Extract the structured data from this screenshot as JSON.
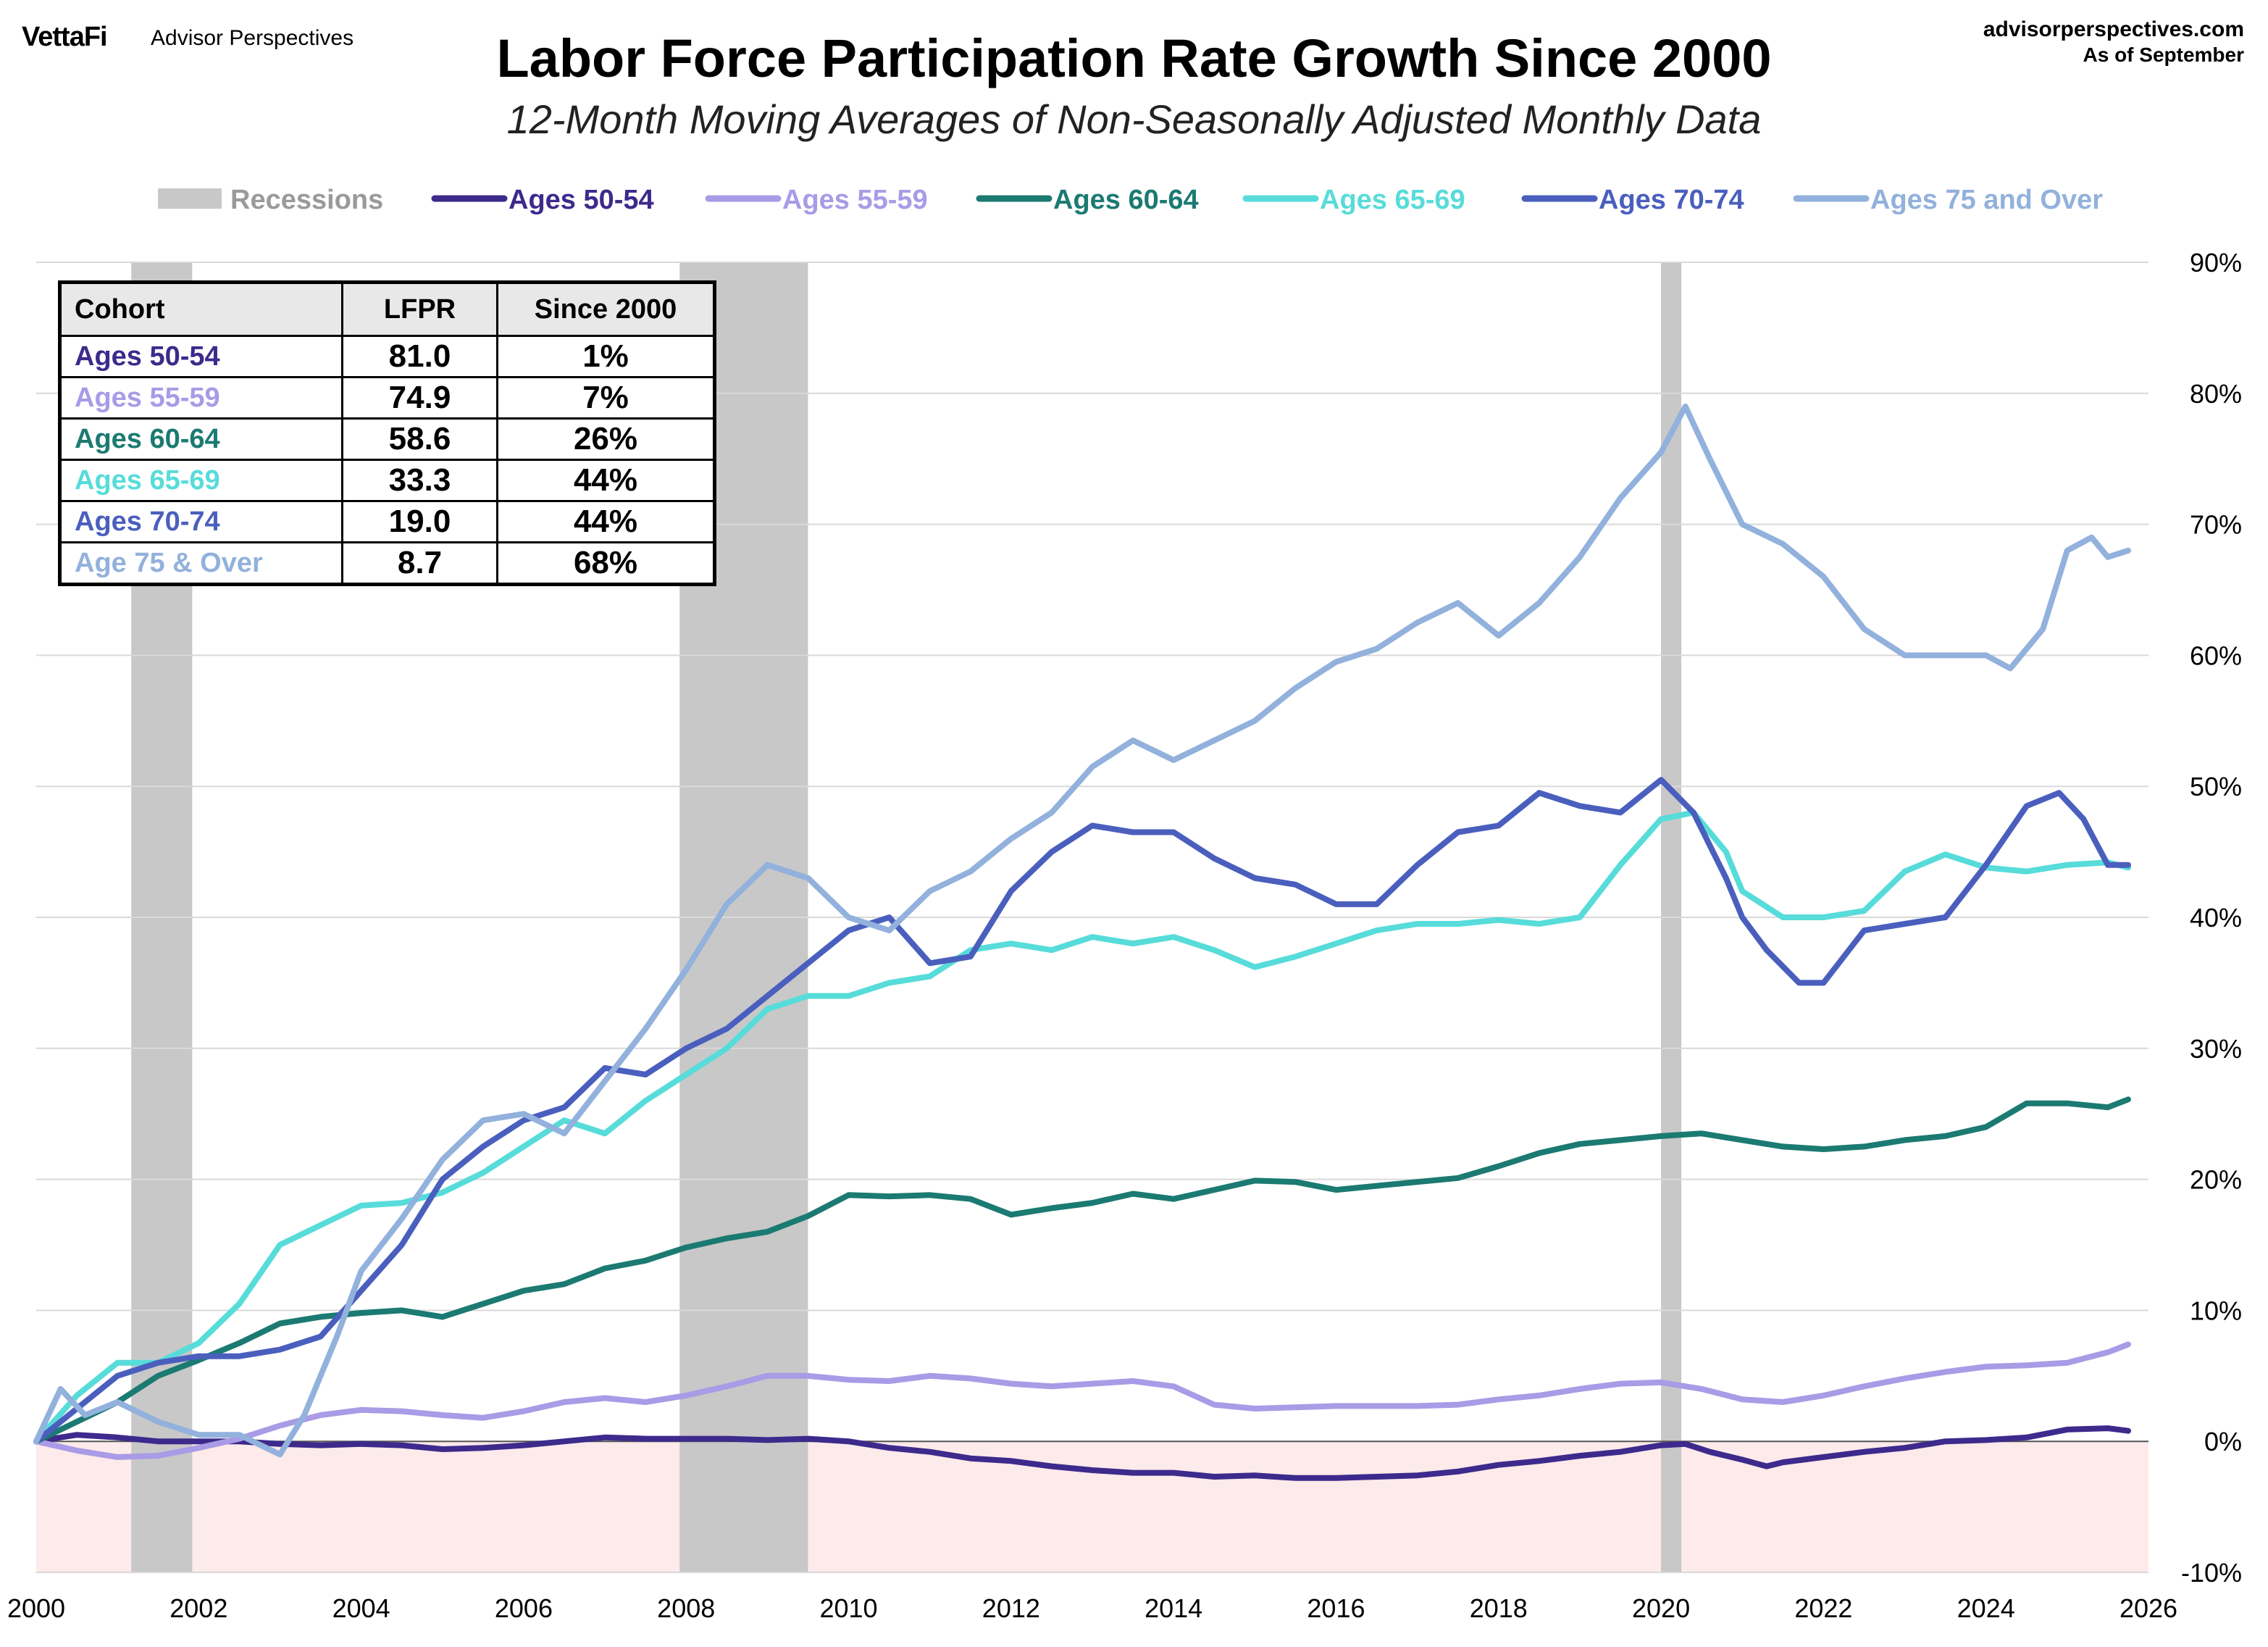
{
  "header": {
    "logo": "VettaFi",
    "brand": "Advisor Perspectives",
    "site": "advisorperspectives.com",
    "as_of": "As of September"
  },
  "chart_data": {
    "type": "line",
    "title": "Labor Force Participation Rate Growth Since 2000",
    "subtitle": "12-Month Moving Averages of Non-Seasonally Adjusted Monthly Data",
    "xlim": [
      2000,
      2026
    ],
    "ylim": [
      -10,
      90
    ],
    "x_ticks": [
      2000,
      2002,
      2004,
      2006,
      2008,
      2010,
      2012,
      2014,
      2016,
      2018,
      2020,
      2022,
      2024,
      2026
    ],
    "x_tick_labels": [
      "2000",
      "2002",
      "2004",
      "2006",
      "2008",
      "2010",
      "2012",
      "2014",
      "2016",
      "2018",
      "2020",
      "2022",
      "2024",
      "2026"
    ],
    "y_ticks": [
      -10,
      0,
      10,
      20,
      30,
      40,
      50,
      60,
      70,
      80,
      90
    ],
    "y_tick_labels": [
      "-10%",
      "0%",
      "10%",
      "20%",
      "30%",
      "40%",
      "50%",
      "60%",
      "70%",
      "80%",
      "90%"
    ],
    "grid": true,
    "legend": "top",
    "recessions": {
      "label": "Recessions",
      "color": "#c8c8c8",
      "periods": [
        [
          2001.17,
          2001.92
        ],
        [
          2007.92,
          2009.5
        ],
        [
          2020.0,
          2020.25
        ]
      ]
    },
    "negative_band_color": "#fdeaea",
    "series": [
      {
        "name": "Ages 50-54",
        "color": "#3d2a8c",
        "x": [
          2000,
          2000.5,
          2001,
          2001.5,
          2002,
          2002.5,
          2003,
          2003.5,
          2004,
          2004.5,
          2005,
          2005.5,
          2006,
          2006.5,
          2007,
          2007.5,
          2008,
          2008.5,
          2009,
          2009.5,
          2010,
          2010.5,
          2011,
          2011.5,
          2012,
          2012.5,
          2013,
          2013.5,
          2014,
          2014.5,
          2015,
          2015.5,
          2016,
          2016.5,
          2017,
          2017.5,
          2018,
          2018.5,
          2019,
          2019.5,
          2020,
          2020.3,
          2020.6,
          2021,
          2021.3,
          2021.5,
          2022,
          2022.5,
          2023,
          2023.5,
          2024,
          2024.5,
          2025,
          2025.5,
          2025.75
        ],
        "values": [
          0,
          0.5,
          0.3,
          0,
          0,
          0,
          -0.2,
          -0.3,
          -0.2,
          -0.3,
          -0.6,
          -0.5,
          -0.3,
          0,
          0.3,
          0.2,
          0.2,
          0.2,
          0.1,
          0.2,
          0,
          -0.5,
          -0.8,
          -1.3,
          -1.5,
          -1.9,
          -2.2,
          -2.4,
          -2.4,
          -2.7,
          -2.6,
          -2.8,
          -2.8,
          -2.7,
          -2.6,
          -2.3,
          -1.8,
          -1.5,
          -1.1,
          -0.8,
          -0.3,
          -0.2,
          -0.8,
          -1.4,
          -1.9,
          -1.6,
          -1.2,
          -0.8,
          -0.5,
          0,
          0.1,
          0.3,
          0.9,
          1.0,
          0.8
        ]
      },
      {
        "name": "Ages 55-59",
        "color": "#a99be6",
        "x": [
          2000,
          2000.5,
          2001,
          2001.5,
          2002,
          2002.5,
          2003,
          2003.5,
          2004,
          2004.5,
          2005,
          2005.5,
          2006,
          2006.5,
          2007,
          2007.5,
          2008,
          2008.5,
          2009,
          2009.5,
          2010,
          2010.5,
          2011,
          2011.5,
          2012,
          2012.5,
          2013,
          2013.5,
          2014,
          2014.5,
          2015,
          2015.5,
          2016,
          2016.5,
          2017,
          2017.5,
          2018,
          2018.5,
          2019,
          2019.5,
          2020,
          2020.5,
          2021,
          2021.5,
          2022,
          2022.5,
          2023,
          2023.5,
          2024,
          2024.5,
          2025,
          2025.5,
          2025.75
        ],
        "values": [
          0,
          -0.7,
          -1.2,
          -1.1,
          -0.5,
          0.2,
          1.2,
          2.0,
          2.4,
          2.3,
          2.0,
          1.8,
          2.3,
          3.0,
          3.3,
          3.0,
          3.5,
          4.2,
          5.0,
          5.0,
          4.7,
          4.6,
          5.0,
          4.8,
          4.4,
          4.2,
          4.4,
          4.6,
          4.2,
          2.8,
          2.5,
          2.6,
          2.7,
          2.7,
          2.7,
          2.8,
          3.2,
          3.5,
          4.0,
          4.4,
          4.5,
          4.0,
          3.2,
          3.0,
          3.5,
          4.2,
          4.8,
          5.3,
          5.7,
          5.8,
          6.0,
          6.8,
          7.4
        ]
      },
      {
        "name": "Ages 60-64",
        "color": "#1b7a72",
        "x": [
          2000,
          2000.5,
          2001,
          2001.5,
          2002,
          2002.5,
          2003,
          2003.5,
          2004,
          2004.5,
          2005,
          2005.5,
          2006,
          2006.5,
          2007,
          2007.5,
          2008,
          2008.5,
          2009,
          2009.5,
          2010,
          2010.5,
          2011,
          2011.5,
          2012,
          2012.5,
          2013,
          2013.5,
          2014,
          2014.5,
          2015,
          2015.5,
          2016,
          2016.5,
          2017,
          2017.5,
          2018,
          2018.5,
          2019,
          2019.5,
          2020,
          2020.5,
          2021,
          2021.5,
          2022,
          2022.5,
          2023,
          2023.5,
          2024,
          2024.5,
          2025,
          2025.5,
          2025.75
        ],
        "values": [
          0,
          1.5,
          3.0,
          5.0,
          6.2,
          7.5,
          9.0,
          9.5,
          9.8,
          10.0,
          9.5,
          10.5,
          11.5,
          12.0,
          13.2,
          13.8,
          14.8,
          15.5,
          16.0,
          17.2,
          18.8,
          18.7,
          18.8,
          18.5,
          17.3,
          17.8,
          18.2,
          18.9,
          18.5,
          19.2,
          19.9,
          19.8,
          19.2,
          19.5,
          19.8,
          20.1,
          21.0,
          22.0,
          22.7,
          23.0,
          23.3,
          23.5,
          23.0,
          22.5,
          22.3,
          22.5,
          23.0,
          23.3,
          24.0,
          25.8,
          25.8,
          25.5,
          26.1
        ]
      },
      {
        "name": "Ages 65-69",
        "color": "#57dcda",
        "x": [
          2000,
          2000.5,
          2001,
          2001.5,
          2002,
          2002.5,
          2003,
          2003.5,
          2004,
          2004.5,
          2005,
          2005.5,
          2006,
          2006.5,
          2007,
          2007.5,
          2008,
          2008.5,
          2009,
          2009.5,
          2010,
          2010.5,
          2011,
          2011.5,
          2012,
          2012.5,
          2013,
          2013.5,
          2014,
          2014.5,
          2015,
          2015.5,
          2016,
          2016.5,
          2017,
          2017.5,
          2018,
          2018.5,
          2019,
          2019.5,
          2020,
          2020.4,
          2020.8,
          2021,
          2021.5,
          2022,
          2022.5,
          2023,
          2023.5,
          2024,
          2024.5,
          2025,
          2025.5,
          2025.75
        ],
        "values": [
          0,
          3.5,
          6.0,
          6.0,
          7.5,
          10.5,
          15.0,
          16.5,
          18.0,
          18.2,
          19.0,
          20.5,
          22.5,
          24.5,
          23.5,
          26.0,
          28.0,
          30.0,
          33.0,
          34.0,
          34.0,
          35.0,
          35.5,
          37.5,
          38.0,
          37.5,
          38.5,
          38.0,
          38.5,
          37.5,
          36.2,
          37.0,
          38.0,
          39.0,
          39.5,
          39.5,
          39.8,
          39.5,
          40.0,
          44.0,
          47.5,
          48.0,
          45.0,
          42.0,
          40.0,
          40.0,
          40.5,
          43.5,
          44.8,
          43.8,
          43.5,
          44.0,
          44.2,
          43.8
        ]
      },
      {
        "name": "Ages 70-74",
        "color": "#4a5fbd",
        "x": [
          2000,
          2000.5,
          2001,
          2001.5,
          2002,
          2002.5,
          2003,
          2003.5,
          2004,
          2004.5,
          2005,
          2005.5,
          2006,
          2006.5,
          2007,
          2007.5,
          2008,
          2008.5,
          2009,
          2009.5,
          2010,
          2010.5,
          2011,
          2011.5,
          2012,
          2012.5,
          2013,
          2013.5,
          2014,
          2014.5,
          2015,
          2015.5,
          2016,
          2016.5,
          2017,
          2017.5,
          2018,
          2018.5,
          2019,
          2019.5,
          2020,
          2020.4,
          2020.8,
          2021,
          2021.3,
          2021.7,
          2022,
          2022.5,
          2023,
          2023.5,
          2024,
          2024.5,
          2024.9,
          2025.2,
          2025.5,
          2025.75
        ],
        "values": [
          0,
          2.5,
          5.0,
          6.0,
          6.5,
          6.5,
          7.0,
          8.0,
          11.5,
          15.0,
          20.0,
          22.5,
          24.5,
          25.5,
          28.5,
          28.0,
          30.0,
          31.5,
          34.0,
          36.5,
          39.0,
          40.0,
          36.5,
          37.0,
          42.0,
          45.0,
          47.0,
          46.5,
          46.5,
          44.5,
          43.0,
          42.5,
          41.0,
          41.0,
          44.0,
          46.5,
          47.0,
          49.5,
          48.5,
          48.0,
          50.5,
          48.0,
          43.0,
          40.0,
          37.5,
          35.0,
          35.0,
          39.0,
          39.5,
          40.0,
          44.0,
          48.5,
          49.5,
          47.5,
          44.0,
          44.0
        ]
      },
      {
        "name": "Ages 75 and Over",
        "color": "#92b1dc",
        "x": [
          2000,
          2000.3,
          2000.6,
          2001,
          2001.5,
          2002,
          2002.5,
          2003,
          2003.3,
          2003.7,
          2004,
          2004.5,
          2005,
          2005.5,
          2006,
          2006.5,
          2007,
          2007.5,
          2008,
          2008.5,
          2009,
          2009.5,
          2010,
          2010.5,
          2011,
          2011.5,
          2012,
          2012.5,
          2013,
          2013.5,
          2014,
          2014.5,
          2015,
          2015.5,
          2016,
          2016.5,
          2017,
          2017.5,
          2018,
          2018.5,
          2019,
          2019.5,
          2020,
          2020.3,
          2020.6,
          2021,
          2021.5,
          2022,
          2022.5,
          2023,
          2023.5,
          2024,
          2024.3,
          2024.7,
          2025,
          2025.3,
          2025.5,
          2025.75
        ],
        "values": [
          0,
          4.0,
          2.0,
          3.0,
          1.5,
          0.5,
          0.5,
          -1.0,
          2.0,
          8.0,
          13.0,
          17.0,
          21.5,
          24.5,
          25.0,
          23.5,
          27.5,
          31.5,
          36.0,
          41.0,
          44.0,
          43.0,
          40.0,
          39.0,
          42.0,
          43.5,
          46.0,
          48.0,
          51.5,
          53.5,
          52.0,
          53.5,
          55.0,
          57.5,
          59.5,
          60.5,
          62.5,
          64.0,
          61.5,
          64.0,
          67.5,
          72.0,
          75.5,
          79.0,
          75.0,
          70.0,
          68.5,
          66.0,
          62.0,
          60.0,
          60.0,
          60.0,
          59.0,
          62.0,
          68.0,
          69.0,
          67.5,
          68.0
        ]
      }
    ]
  },
  "table": {
    "headers": [
      "Cohort",
      "LFPR",
      "Since 2000"
    ],
    "rows": [
      {
        "cohort": "Ages 50-54",
        "lfpr": "81.0",
        "since": "1%",
        "color": "#3d2a8c"
      },
      {
        "cohort": "Ages 55-59",
        "lfpr": "74.9",
        "since": "7%",
        "color": "#a99be6"
      },
      {
        "cohort": "Ages 60-64",
        "lfpr": "58.6",
        "since": "26%",
        "color": "#1b7a72"
      },
      {
        "cohort": "Ages 65-69",
        "lfpr": "33.3",
        "since": "44%",
        "color": "#57dcda"
      },
      {
        "cohort": "Ages 70-74",
        "lfpr": "19.0",
        "since": "44%",
        "color": "#4a5fbd"
      },
      {
        "cohort": "Age 75 & Over",
        "lfpr": "8.7",
        "since": "68%",
        "color": "#92b1dc"
      }
    ]
  }
}
